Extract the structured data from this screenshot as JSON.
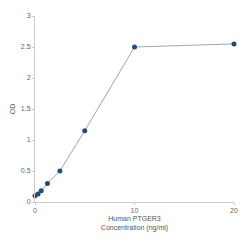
{
  "chart_data": {
    "type": "line",
    "x_label": "Human PTGER3\nConcentration (ng/ml)",
    "y_label": "OD",
    "x": [
      0,
      0.31,
      0.625,
      1.25,
      2.5,
      5,
      10,
      20
    ],
    "series": [
      {
        "name": "PTGER3",
        "color": "#1f4e79",
        "values": [
          0.1,
          0.13,
          0.18,
          0.3,
          0.5,
          1.15,
          2.5,
          2.55
        ]
      }
    ],
    "line_color": "#a6a6a6",
    "marker": "circle",
    "xlim": [
      0,
      20
    ],
    "xticks": [
      0,
      10,
      20
    ],
    "ylim": [
      0,
      3
    ],
    "yticks": [
      0,
      0.5,
      1,
      1.5,
      2,
      2.5,
      3
    ],
    "grid": false
  }
}
